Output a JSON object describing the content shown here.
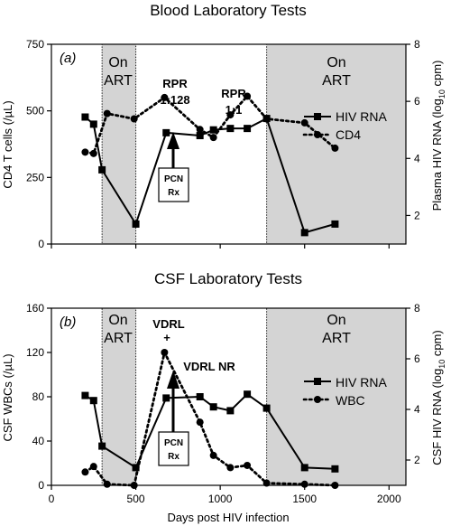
{
  "panels": [
    {
      "id": "a",
      "title": "Blood Laboratory Tests",
      "panel_label": "(a)",
      "ylabel_left": "CD4 T cells (/µL)",
      "ylabel_right": "Plasma HIV RNA (log",
      "ylabel_right_sub": "10",
      "ylabel_right_tail": " cpm)",
      "left_ticks": [
        "0",
        "250",
        "500",
        "750"
      ],
      "right_ticks": [
        "2",
        "4",
        "6",
        "8"
      ],
      "shade_label_1": [
        "On",
        "ART"
      ],
      "shade_label_2": [
        "On",
        "ART"
      ],
      "annotations": [
        {
          "text": "RPR",
          "bold": true
        },
        {
          "text": "1:128",
          "bold": true
        },
        {
          "text": "RPR",
          "bold": true
        },
        {
          "text": "1:1",
          "bold": true
        }
      ],
      "rx_box": [
        "PCN",
        "Rx"
      ],
      "legend": [
        {
          "label": "HIV RNA",
          "style": "solid-square"
        },
        {
          "label": "CD4",
          "style": "dotted-circle"
        }
      ]
    },
    {
      "id": "b",
      "title": "CSF Laboratory Tests",
      "panel_label": "(b)",
      "ylabel_left": "CSF WBCs (/µL)",
      "ylabel_right": "CSF HIV RNA (log",
      "ylabel_right_sub": "10",
      "ylabel_right_tail": " cpm)",
      "left_ticks": [
        "0",
        "40",
        "80",
        "120",
        "160"
      ],
      "right_ticks": [
        "2",
        "4",
        "6",
        "8"
      ],
      "shade_label_1": [
        "On",
        "ART"
      ],
      "shade_label_2": [
        "On",
        "ART"
      ],
      "annotations": [
        {
          "text": "VDRL",
          "bold": true
        },
        {
          "text": "+",
          "bold": true
        },
        {
          "text": "VDRL NR",
          "bold": true
        }
      ],
      "rx_box": [
        "PCN",
        "Rx"
      ],
      "legend": [
        {
          "label": "HIV RNA",
          "style": "solid-square"
        },
        {
          "label": "WBC",
          "style": "dotted-circle"
        }
      ]
    }
  ],
  "x_axis": {
    "label": "Days post HIV infection",
    "ticks": [
      "0",
      "500",
      "1000",
      "1500",
      "2000"
    ]
  },
  "chart_data": [
    {
      "type": "line",
      "panel": "a",
      "title": "Blood Laboratory Tests",
      "xlim": [
        0,
        2100
      ],
      "ylim_left": [
        0,
        750
      ],
      "ylim_right": [
        1,
        8
      ],
      "shaded_ranges": [
        [
          300,
          500
        ],
        [
          1275,
          2100
        ]
      ],
      "series": [
        {
          "name": "HIV RNA",
          "axis": "right",
          "x": [
            200,
            250,
            300,
            500,
            680,
            880,
            960,
            1060,
            1160,
            1275,
            1500,
            1680
          ],
          "y": [
            5.45,
            5.2,
            3.6,
            1.7,
            4.9,
            4.8,
            5.0,
            5.05,
            5.05,
            5.4,
            1.4,
            1.7
          ]
        },
        {
          "name": "CD4",
          "axis": "left",
          "x": [
            200,
            250,
            330,
            490,
            670,
            880,
            960,
            1060,
            1160,
            1275,
            1500,
            1680
          ],
          "y": [
            345,
            340,
            490,
            470,
            550,
            430,
            400,
            485,
            555,
            470,
            455,
            360
          ]
        }
      ]
    },
    {
      "type": "line",
      "panel": "b",
      "title": "CSF Laboratory Tests",
      "xlim": [
        0,
        2100
      ],
      "ylim_left": [
        0,
        160
      ],
      "ylim_right": [
        1,
        8
      ],
      "shaded_ranges": [
        [
          300,
          500
        ],
        [
          1275,
          2100
        ]
      ],
      "series": [
        {
          "name": "HIV RNA",
          "axis": "right",
          "x": [
            200,
            250,
            300,
            500,
            680,
            880,
            960,
            1060,
            1160,
            1275,
            1500,
            1680
          ],
          "y": [
            4.55,
            4.35,
            2.55,
            1.7,
            4.45,
            4.5,
            4.1,
            3.95,
            4.6,
            4.05,
            1.7,
            1.65
          ]
        },
        {
          "name": "WBC",
          "axis": "left",
          "x": [
            200,
            250,
            330,
            490,
            670,
            880,
            960,
            1060,
            1160,
            1275,
            1500,
            1680
          ],
          "y": [
            12,
            17,
            1,
            0,
            120,
            57,
            27,
            16,
            18,
            2,
            1,
            0
          ]
        }
      ]
    }
  ]
}
